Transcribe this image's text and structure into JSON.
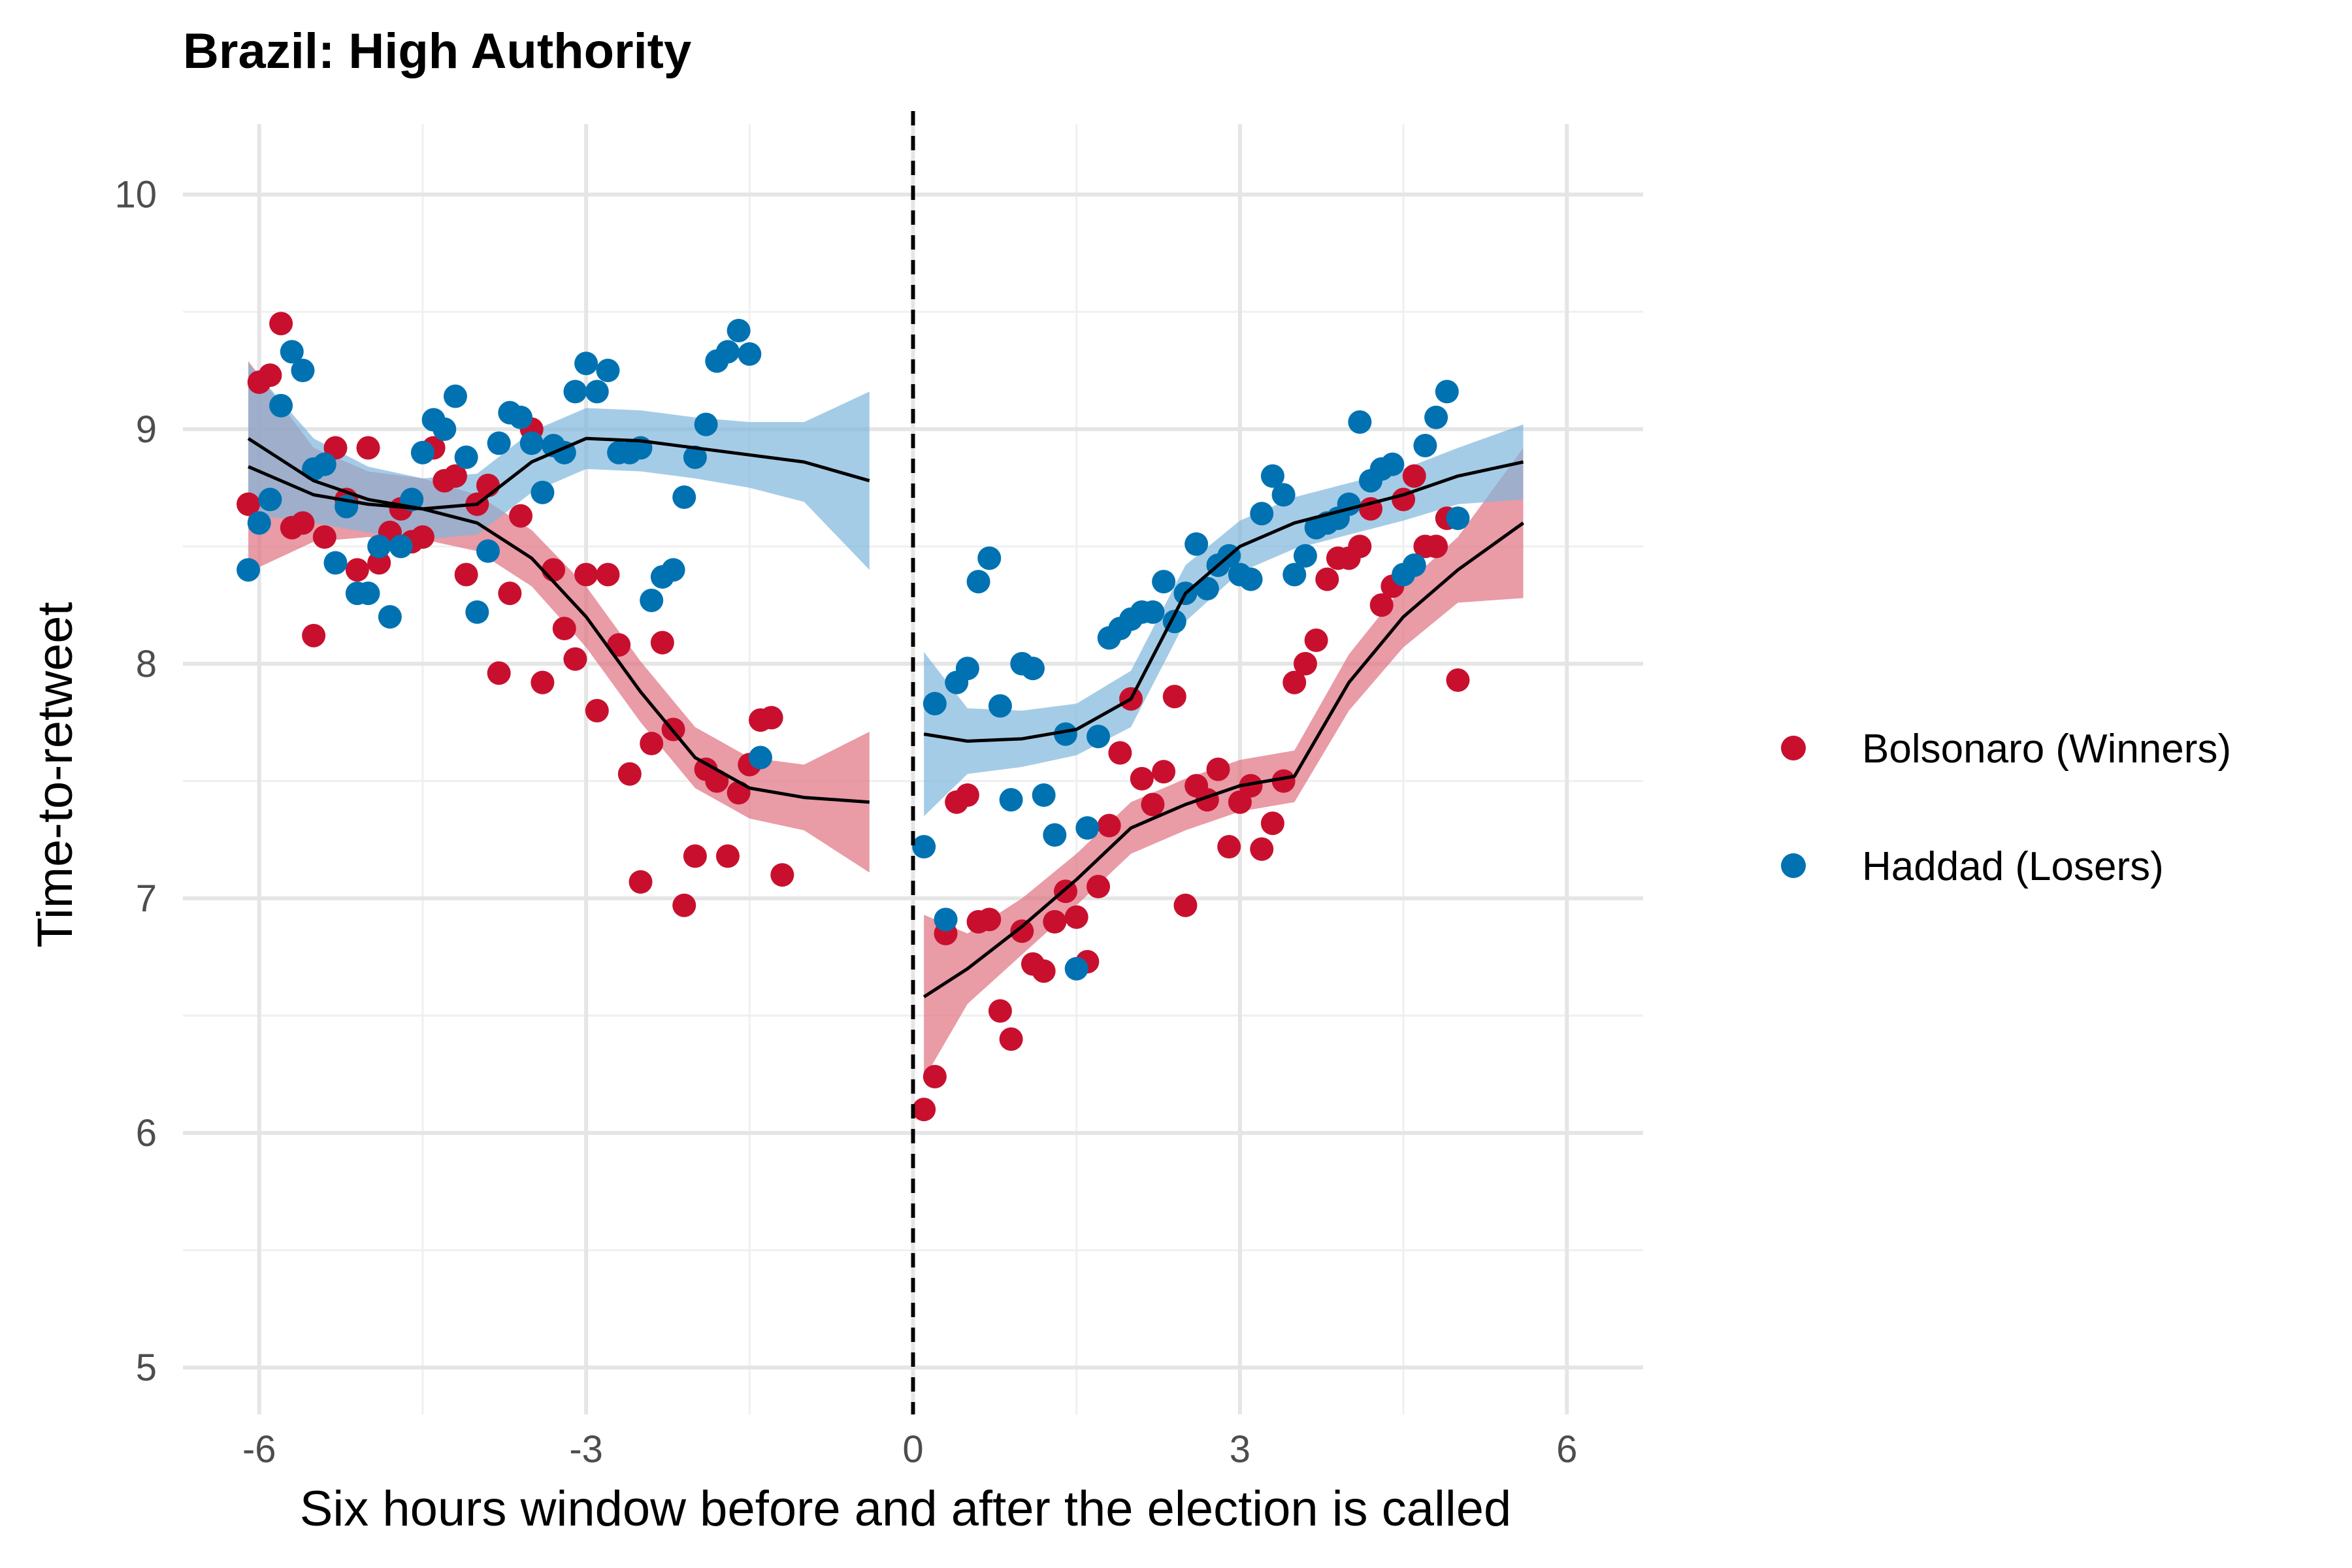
{
  "chart_data": {
    "type": "scatter",
    "title": "Brazil: High Authority",
    "xlabel": "Six hours window before and after the election is called",
    "ylabel": "Time-to-retweet",
    "xlim": [
      -6.7,
      6.7
    ],
    "ylim": [
      4.8,
      10.3
    ],
    "x_ticks": [
      -6,
      -3,
      0,
      3,
      6
    ],
    "x_tick_labels": [
      "-6",
      "-3",
      "0",
      "3",
      "6"
    ],
    "y_ticks": [
      5,
      6,
      7,
      8,
      9,
      10
    ],
    "y_tick_labels": [
      "5",
      "6",
      "7",
      "8",
      "9",
      "10"
    ],
    "grid": true,
    "legend_position": "right",
    "vline_x": 0,
    "series": [
      {
        "name": "Bolsonaro (Winners)",
        "color": "#c8102e",
        "ribbon_color": "#e07080",
        "points": [
          [
            -6.1,
            8.68
          ],
          [
            -6.0,
            9.2
          ],
          [
            -5.9,
            9.23
          ],
          [
            -5.8,
            9.45
          ],
          [
            -5.7,
            8.58
          ],
          [
            -5.6,
            8.6
          ],
          [
            -5.5,
            8.12
          ],
          [
            -5.4,
            8.54
          ],
          [
            -5.3,
            8.92
          ],
          [
            -5.2,
            8.7
          ],
          [
            -5.1,
            8.4
          ],
          [
            -5.0,
            8.92
          ],
          [
            -4.9,
            8.43
          ],
          [
            -4.8,
            8.56
          ],
          [
            -4.7,
            8.66
          ],
          [
            -4.6,
            8.52
          ],
          [
            -4.5,
            8.54
          ],
          [
            -4.4,
            8.92
          ],
          [
            -4.3,
            8.78
          ],
          [
            -4.2,
            8.8
          ],
          [
            -4.1,
            8.38
          ],
          [
            -4.0,
            8.68
          ],
          [
            -3.9,
            8.76
          ],
          [
            -3.8,
            7.96
          ],
          [
            -3.7,
            8.3
          ],
          [
            -3.6,
            8.63
          ],
          [
            -3.5,
            9.0
          ],
          [
            -3.4,
            7.92
          ],
          [
            -3.3,
            8.4
          ],
          [
            -3.2,
            8.15
          ],
          [
            -3.1,
            8.02
          ],
          [
            -3.0,
            8.38
          ],
          [
            -2.9,
            7.8
          ],
          [
            -2.8,
            8.38
          ],
          [
            -2.7,
            8.08
          ],
          [
            -2.6,
            7.53
          ],
          [
            -2.5,
            7.07
          ],
          [
            -2.4,
            7.66
          ],
          [
            -2.3,
            8.09
          ],
          [
            -2.2,
            7.72
          ],
          [
            -2.1,
            6.97
          ],
          [
            -2.0,
            7.18
          ],
          [
            -1.9,
            7.55
          ],
          [
            -1.8,
            7.5
          ],
          [
            -1.7,
            7.18
          ],
          [
            -1.6,
            7.45
          ],
          [
            -1.5,
            7.57
          ],
          [
            -1.4,
            7.76
          ],
          [
            -1.3,
            7.77
          ],
          [
            -1.2,
            7.1
          ],
          [
            0.1,
            6.1
          ],
          [
            0.2,
            6.24
          ],
          [
            0.3,
            6.85
          ],
          [
            0.4,
            7.41
          ],
          [
            0.5,
            7.44
          ],
          [
            0.6,
            6.9
          ],
          [
            0.7,
            6.91
          ],
          [
            0.8,
            6.52
          ],
          [
            0.9,
            6.4
          ],
          [
            1.0,
            6.86
          ],
          [
            1.1,
            6.72
          ],
          [
            1.2,
            6.69
          ],
          [
            1.3,
            6.9
          ],
          [
            1.4,
            7.03
          ],
          [
            1.5,
            6.92
          ],
          [
            1.6,
            6.73
          ],
          [
            1.7,
            7.05
          ],
          [
            1.8,
            7.31
          ],
          [
            1.9,
            7.62
          ],
          [
            2.0,
            7.85
          ],
          [
            2.1,
            7.51
          ],
          [
            2.2,
            7.4
          ],
          [
            2.3,
            7.54
          ],
          [
            2.4,
            7.86
          ],
          [
            2.5,
            6.97
          ],
          [
            2.6,
            7.48
          ],
          [
            2.7,
            7.42
          ],
          [
            2.8,
            7.55
          ],
          [
            2.9,
            7.22
          ],
          [
            3.0,
            7.41
          ],
          [
            3.1,
            7.48
          ],
          [
            3.2,
            7.21
          ],
          [
            3.3,
            7.32
          ],
          [
            3.4,
            7.5
          ],
          [
            3.5,
            7.92
          ],
          [
            3.6,
            8.0
          ],
          [
            3.7,
            8.1
          ],
          [
            3.8,
            8.36
          ],
          [
            3.9,
            8.45
          ],
          [
            4.0,
            8.45
          ],
          [
            4.1,
            8.5
          ],
          [
            4.2,
            8.66
          ],
          [
            4.3,
            8.25
          ],
          [
            4.4,
            8.33
          ],
          [
            4.5,
            8.7
          ],
          [
            4.6,
            8.8
          ],
          [
            4.7,
            8.5
          ],
          [
            4.8,
            8.5
          ],
          [
            4.9,
            8.62
          ],
          [
            5.0,
            7.93
          ]
        ],
        "smooth": [
          [
            -6.1,
            8.84
          ],
          [
            -5.5,
            8.72
          ],
          [
            -5.0,
            8.68
          ],
          [
            -4.5,
            8.66
          ],
          [
            -4.0,
            8.6
          ],
          [
            -3.5,
            8.45
          ],
          [
            -3.0,
            8.2
          ],
          [
            -2.5,
            7.88
          ],
          [
            -2.0,
            7.6
          ],
          [
            -1.5,
            7.47
          ],
          [
            -1.0,
            7.43
          ],
          [
            -0.4,
            7.41
          ],
          [
            0.1,
            6.58
          ],
          [
            0.5,
            6.7
          ],
          [
            1.0,
            6.88
          ],
          [
            1.5,
            7.08
          ],
          [
            2.0,
            7.3
          ],
          [
            2.5,
            7.4
          ],
          [
            3.0,
            7.48
          ],
          [
            3.5,
            7.52
          ],
          [
            4.0,
            7.92
          ],
          [
            4.5,
            8.2
          ],
          [
            5.0,
            8.4
          ],
          [
            5.6,
            8.6
          ]
        ],
        "ribbon_half_width": [
          0.45,
          0.2,
          0.14,
          0.13,
          0.12,
          0.12,
          0.13,
          0.13,
          0.13,
          0.13,
          0.14,
          0.3,
          0.35,
          0.15,
          0.12,
          0.11,
          0.11,
          0.11,
          0.11,
          0.11,
          0.12,
          0.13,
          0.14,
          0.32
        ]
      },
      {
        "name": "Haddad (Losers)",
        "color": "#0072b2",
        "ribbon_color": "#7fb6dc",
        "points": [
          [
            -6.1,
            8.4
          ],
          [
            -6.0,
            8.6
          ],
          [
            -5.9,
            8.7
          ],
          [
            -5.8,
            9.1
          ],
          [
            -5.7,
            9.33
          ],
          [
            -5.6,
            9.25
          ],
          [
            -5.5,
            8.83
          ],
          [
            -5.4,
            8.85
          ],
          [
            -5.3,
            8.43
          ],
          [
            -5.2,
            8.67
          ],
          [
            -5.1,
            8.3
          ],
          [
            -5.0,
            8.3
          ],
          [
            -4.9,
            8.5
          ],
          [
            -4.8,
            8.2
          ],
          [
            -4.7,
            8.5
          ],
          [
            -4.6,
            8.7
          ],
          [
            -4.5,
            8.9
          ],
          [
            -4.4,
            9.04
          ],
          [
            -4.3,
            9.0
          ],
          [
            -4.2,
            9.14
          ],
          [
            -4.1,
            8.88
          ],
          [
            -4.0,
            8.22
          ],
          [
            -3.9,
            8.48
          ],
          [
            -3.8,
            8.94
          ],
          [
            -3.7,
            9.07
          ],
          [
            -3.6,
            9.05
          ],
          [
            -3.5,
            8.94
          ],
          [
            -3.4,
            8.73
          ],
          [
            -3.3,
            8.93
          ],
          [
            -3.2,
            8.9
          ],
          [
            -3.1,
            9.16
          ],
          [
            -3.0,
            9.28
          ],
          [
            -2.9,
            9.16
          ],
          [
            -2.8,
            9.25
          ],
          [
            -2.7,
            8.9
          ],
          [
            -2.6,
            8.9
          ],
          [
            -2.5,
            8.92
          ],
          [
            -2.4,
            8.27
          ],
          [
            -2.3,
            8.37
          ],
          [
            -2.2,
            8.4
          ],
          [
            -2.1,
            8.71
          ],
          [
            -2.0,
            8.88
          ],
          [
            -1.9,
            9.02
          ],
          [
            -1.8,
            9.29
          ],
          [
            -1.7,
            9.33
          ],
          [
            -1.6,
            9.42
          ],
          [
            -1.5,
            9.32
          ],
          [
            -1.4,
            7.6
          ],
          [
            0.1,
            7.22
          ],
          [
            0.2,
            7.83
          ],
          [
            0.3,
            6.91
          ],
          [
            0.4,
            7.92
          ],
          [
            0.5,
            7.98
          ],
          [
            0.6,
            8.35
          ],
          [
            0.7,
            8.45
          ],
          [
            0.8,
            7.82
          ],
          [
            0.9,
            7.42
          ],
          [
            1.0,
            8.0
          ],
          [
            1.1,
            7.98
          ],
          [
            1.2,
            7.44
          ],
          [
            1.3,
            7.27
          ],
          [
            1.4,
            7.7
          ],
          [
            1.5,
            6.7
          ],
          [
            1.6,
            7.3
          ],
          [
            1.7,
            7.69
          ],
          [
            1.8,
            8.11
          ],
          [
            1.9,
            8.15
          ],
          [
            2.0,
            8.19
          ],
          [
            2.1,
            8.22
          ],
          [
            2.2,
            8.22
          ],
          [
            2.3,
            8.35
          ],
          [
            2.4,
            8.18
          ],
          [
            2.5,
            8.3
          ],
          [
            2.6,
            8.51
          ],
          [
            2.7,
            8.32
          ],
          [
            2.8,
            8.42
          ],
          [
            2.9,
            8.46
          ],
          [
            3.0,
            8.38
          ],
          [
            3.1,
            8.36
          ],
          [
            3.2,
            8.64
          ],
          [
            3.3,
            8.8
          ],
          [
            3.4,
            8.72
          ],
          [
            3.5,
            8.38
          ],
          [
            3.6,
            8.46
          ],
          [
            3.7,
            8.58
          ],
          [
            3.8,
            8.6
          ],
          [
            3.9,
            8.62
          ],
          [
            4.0,
            8.68
          ],
          [
            4.1,
            9.03
          ],
          [
            4.2,
            8.78
          ],
          [
            4.3,
            8.83
          ],
          [
            4.4,
            8.85
          ],
          [
            4.5,
            8.38
          ],
          [
            4.6,
            8.42
          ],
          [
            4.7,
            8.93
          ],
          [
            4.8,
            9.05
          ],
          [
            4.9,
            9.16
          ],
          [
            5.0,
            8.62
          ]
        ],
        "smooth": [
          [
            -6.1,
            8.96
          ],
          [
            -5.5,
            8.78
          ],
          [
            -5.0,
            8.7
          ],
          [
            -4.5,
            8.66
          ],
          [
            -4.0,
            8.68
          ],
          [
            -3.5,
            8.86
          ],
          [
            -3.0,
            8.96
          ],
          [
            -2.5,
            8.95
          ],
          [
            -2.0,
            8.92
          ],
          [
            -1.5,
            8.89
          ],
          [
            -1.0,
            8.86
          ],
          [
            -0.4,
            8.78
          ],
          [
            0.1,
            7.7
          ],
          [
            0.5,
            7.67
          ],
          [
            1.0,
            7.68
          ],
          [
            1.5,
            7.72
          ],
          [
            2.0,
            7.85
          ],
          [
            2.5,
            8.3
          ],
          [
            3.0,
            8.5
          ],
          [
            3.5,
            8.6
          ],
          [
            4.0,
            8.66
          ],
          [
            4.5,
            8.72
          ],
          [
            5.0,
            8.8
          ],
          [
            5.6,
            8.86
          ]
        ],
        "ribbon_half_width": [
          0.32,
          0.18,
          0.14,
          0.13,
          0.13,
          0.13,
          0.13,
          0.13,
          0.13,
          0.14,
          0.17,
          0.38,
          0.35,
          0.14,
          0.12,
          0.11,
          0.12,
          0.12,
          0.11,
          0.11,
          0.11,
          0.11,
          0.12,
          0.16
        ]
      }
    ]
  }
}
